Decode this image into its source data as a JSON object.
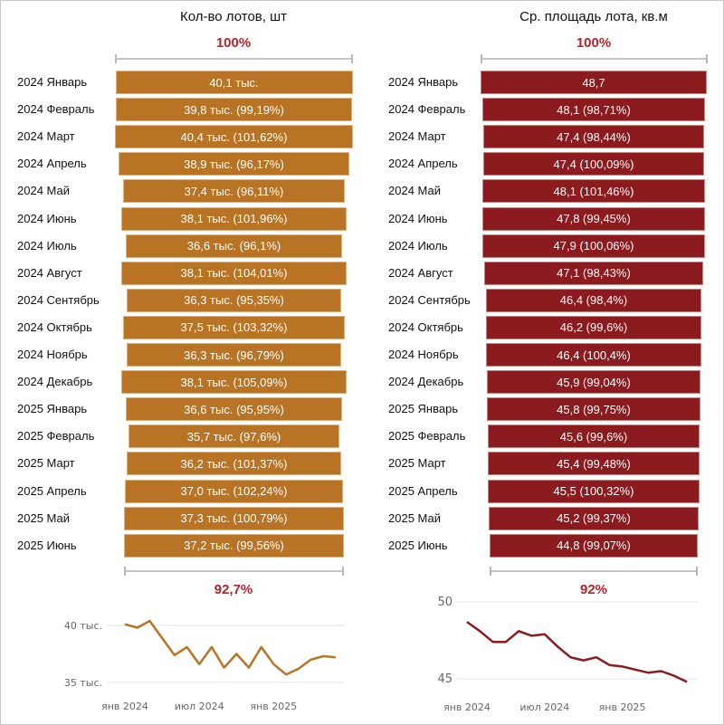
{
  "colors": {
    "left_bar": "#b87424",
    "right_bar": "#8c1b1f",
    "percent_text": "#b3242a"
  },
  "left": {
    "title": "Кол-во лотов, шт",
    "top_percent": "100%",
    "bottom_percent": "92,7%"
  },
  "right": {
    "title": "Ср. площадь лота, кв.м",
    "top_percent": "100%",
    "bottom_percent": "92%"
  },
  "chart_data": [
    {
      "type": "bar",
      "subtype": "funnel",
      "title": "Кол-во лотов, шт",
      "categories": [
        "2024 Январь",
        "2024 Февраль",
        "2024 Март",
        "2024 Апрель",
        "2024 Май",
        "2024 Июнь",
        "2024 Июль",
        "2024 Август",
        "2024 Сентябрь",
        "2024 Октябрь",
        "2024 Ноябрь",
        "2024 Декабрь",
        "2025 Январь",
        "2025 Февраль",
        "2025 Март",
        "2025 Апрель",
        "2025 Май",
        "2025 Июнь"
      ],
      "values": [
        40.1,
        39.8,
        40.4,
        38.9,
        37.4,
        38.1,
        36.6,
        38.1,
        36.3,
        37.5,
        36.3,
        38.1,
        36.6,
        35.7,
        36.2,
        37.0,
        37.3,
        37.2
      ],
      "unit": "тыс.",
      "labels": [
        "40,1 тыс.",
        "39,8 тыс. (99,19%)",
        "40,4 тыс. (101,62%)",
        "38,9 тыс. (96,17%)",
        "37,4 тыс. (96,11%)",
        "38,1 тыс. (101,96%)",
        "36,6 тыс. (96,1%)",
        "38,1 тыс. (104,01%)",
        "36,3 тыс. (95,35%)",
        "37,5 тыс. (103,32%)",
        "36,3 тыс. (96,79%)",
        "38,1 тыс. (105,09%)",
        "36,6 тыс. (95,95%)",
        "35,7 тыс. (97,6%)",
        "36,2 тыс. (101,37%)",
        "37,0 тыс. (102,24%)",
        "37,3 тыс. (100,79%)",
        "37,2 тыс. (99,56%)"
      ],
      "top_percent": "100%",
      "bottom_percent": "92,7%"
    },
    {
      "type": "bar",
      "subtype": "funnel",
      "title": "Ср. площадь лота, кв.м",
      "categories": [
        "2024 Январь",
        "2024 Февраль",
        "2024 Март",
        "2024 Апрель",
        "2024 Май",
        "2024 Июнь",
        "2024 Июль",
        "2024 Август",
        "2024 Сентябрь",
        "2024 Октябрь",
        "2024 Ноябрь",
        "2024 Декабрь",
        "2025 Январь",
        "2025 Февраль",
        "2025 Март",
        "2025 Апрель",
        "2025 Май",
        "2025 Июнь"
      ],
      "values": [
        48.7,
        48.1,
        47.4,
        47.4,
        48.1,
        47.8,
        47.9,
        47.1,
        46.4,
        46.2,
        46.4,
        45.9,
        45.8,
        45.6,
        45.4,
        45.5,
        45.2,
        44.8
      ],
      "labels": [
        "48,7",
        "48,1 (98,71%)",
        "47,4 (98,44%)",
        "47,4 (100,09%)",
        "48,1 (101,46%)",
        "47,8 (99,45%)",
        "47,9 (100,06%)",
        "47,1 (98,43%)",
        "46,4 (98,4%)",
        "46,2 (99,6%)",
        "46,4 (100,4%)",
        "45,9 (99,04%)",
        "45,8 (99,75%)",
        "45,6 (99,6%)",
        "45,4 (99,48%)",
        "45,5 (100,32%)",
        "45,2 (99,37%)",
        "44,8 (99,07%)"
      ],
      "top_percent": "100%",
      "bottom_percent": "92%"
    },
    {
      "type": "line",
      "title": "",
      "x": [
        "янв 2024",
        "фев 2024",
        "мар 2024",
        "апр 2024",
        "май 2024",
        "июн 2024",
        "июл 2024",
        "авг 2024",
        "сен 2024",
        "окт 2024",
        "ноя 2024",
        "дек 2024",
        "янв 2025",
        "фев 2025",
        "мар 2025",
        "апр 2025",
        "май 2025",
        "июн 2025"
      ],
      "values": [
        40.1,
        39.8,
        40.4,
        38.9,
        37.4,
        38.1,
        36.6,
        38.1,
        36.3,
        37.5,
        36.3,
        38.1,
        36.6,
        35.7,
        36.2,
        37.0,
        37.3,
        37.2
      ],
      "ylim": [
        35,
        40
      ],
      "yticks": [
        40,
        35
      ],
      "ytick_labels": [
        "40 тыс.",
        "35 тыс."
      ],
      "xtick_labels": [
        "янв 2024",
        "июл 2024",
        "янв 2025"
      ],
      "grid": true
    },
    {
      "type": "line",
      "title": "",
      "x": [
        "янв 2024",
        "фев 2024",
        "мар 2024",
        "апр 2024",
        "май 2024",
        "июн 2024",
        "июл 2024",
        "авг 2024",
        "сен 2024",
        "окт 2024",
        "ноя 2024",
        "дек 2024",
        "янв 2025",
        "фев 2025",
        "мар 2025",
        "апр 2025",
        "май 2025",
        "июн 2025"
      ],
      "values": [
        48.7,
        48.1,
        47.4,
        47.4,
        48.1,
        47.8,
        47.9,
        47.1,
        46.4,
        46.2,
        46.4,
        45.9,
        45.8,
        45.6,
        45.4,
        45.5,
        45.2,
        44.8
      ],
      "ylim": [
        45,
        50
      ],
      "yticks": [
        50,
        45
      ],
      "ytick_labels": [
        "50",
        "45"
      ],
      "xtick_labels": [
        "янв 2024",
        "июл 2024",
        "янв 2025"
      ],
      "grid": true
    }
  ]
}
